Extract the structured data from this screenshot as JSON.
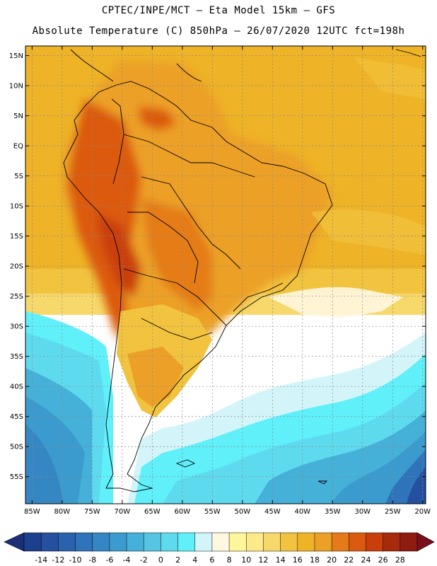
{
  "header": {
    "line1": "CPTEC/INPE/MCT —  Eta Model 15km — GFS",
    "line2": "Absolute Temperature (C) 850hPa — 26/07/2020 12UTC fct=198h"
  },
  "map": {
    "lat_labels": [
      "15N",
      "10N",
      "5N",
      "EQ",
      "5S",
      "10S",
      "15S",
      "20S",
      "25S",
      "30S",
      "35S",
      "40S",
      "45S",
      "50S",
      "55S"
    ],
    "lon_labels": [
      "85W",
      "80W",
      "75W",
      "70W",
      "65W",
      "60W",
      "55W",
      "50W",
      "45W",
      "40W",
      "35W",
      "30W",
      "25W",
      "20W"
    ],
    "lat_values": [
      15,
      10,
      5,
      0,
      -5,
      -10,
      -15,
      -20,
      -25,
      -30,
      -35,
      -40,
      -45,
      -50,
      -55
    ],
    "lon_values": [
      -85,
      -80,
      -75,
      -70,
      -65,
      -60,
      -55,
      -50,
      -45,
      -40,
      -35,
      -30,
      -25,
      -20
    ]
  },
  "colorbar": {
    "labels": [
      "-14",
      "-12",
      "-10",
      "-8",
      "-6",
      "-4",
      "-2",
      "0",
      "2",
      "4",
      "6",
      "8",
      "10",
      "12",
      "14",
      "16",
      "18",
      "20",
      "22",
      "24",
      "26",
      "28"
    ],
    "colors": [
      "#1c3f8e",
      "#24509f",
      "#2a62ad",
      "#2f74bb",
      "#3587c4",
      "#3b9bce",
      "#45b0d8",
      "#55c5e3",
      "#5edaee",
      "#5ff0fa",
      "#d3f5fa",
      "#fff8e0",
      "#fff59a",
      "#fce98a",
      "#f7d86a",
      "#f1c33f",
      "#eeb327",
      "#eca027",
      "#e57b18",
      "#dc5a0f",
      "#c93f0c",
      "#a82a0c",
      "#8e1c10"
    ],
    "left_arrow_color": "#1a2f78",
    "right_arrow_color": "#7a0f1c"
  }
}
